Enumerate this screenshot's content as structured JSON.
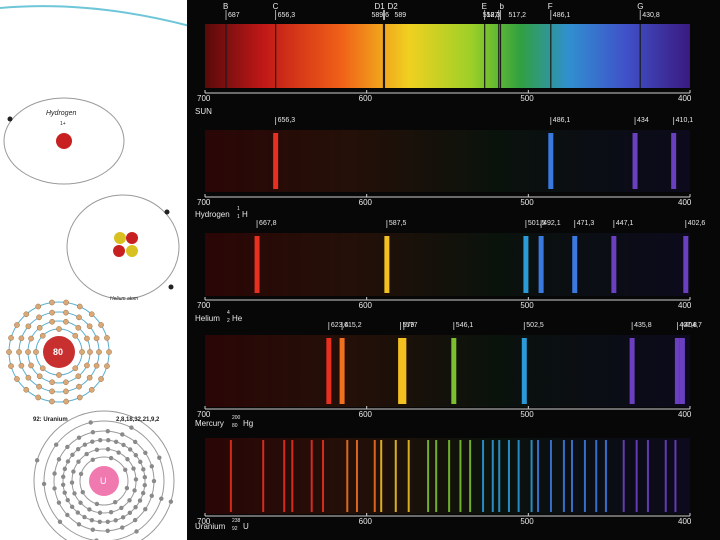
{
  "colors": {
    "background": "#070707",
    "red": "#e03020",
    "orange": "#f08020",
    "yellow": "#f2c020",
    "green": "#7cc030",
    "blue": "#3a8ae0",
    "violet": "#6a40c0"
  },
  "axis_ticks": [
    "700",
    "600",
    "500",
    "400"
  ],
  "atoms": {
    "hydrogen": {
      "title": "Hydrogen",
      "sub": "1+"
    },
    "helium": {
      "title": "Helium atom"
    },
    "mercury": {
      "nucleus": "80"
    },
    "uranium": {
      "title": "92: Uranium",
      "config": "2,8,18,32,21,9,2",
      "nucleus": "U"
    }
  },
  "chart_data": {
    "type": "spectra",
    "x_unit": "nm",
    "x_range": [
      700,
      400
    ],
    "spectra": [
      {
        "name": "SUN",
        "kind": "absorption",
        "lines": [
          {
            "key": "B",
            "nm": 687,
            "label": "687"
          },
          {
            "key": "C",
            "nm": 656.3,
            "label": "656,3"
          },
          {
            "key": "D1",
            "nm": 589.6,
            "label": "589,6"
          },
          {
            "key": "D2",
            "nm": 589,
            "label": "589"
          },
          {
            "key": "E",
            "nm": 527,
            "label": "527"
          },
          {
            "key": "",
            "nm": 518.3,
            "label": "518,3"
          },
          {
            "key": "b",
            "nm": 517.2,
            "label": "517,2"
          },
          {
            "key": "F",
            "nm": 486.1,
            "label": "486,1"
          },
          {
            "key": "G",
            "nm": 430.8,
            "label": "430,8"
          }
        ]
      },
      {
        "name": "Hydrogen",
        "isotope": {
          "mass": "1",
          "atomic": "1",
          "symbol": "H"
        },
        "kind": "emission",
        "lines": [
          {
            "nm": 656.3,
            "label": "656,3"
          },
          {
            "nm": 486.1,
            "label": "486,1"
          },
          {
            "nm": 434,
            "label": "434"
          },
          {
            "nm": 410.1,
            "label": "410,1"
          }
        ]
      },
      {
        "name": "Helium",
        "isotope": {
          "mass": "4",
          "atomic": "2",
          "symbol": "He"
        },
        "kind": "emission",
        "lines": [
          {
            "nm": 667.8,
            "label": "667,8"
          },
          {
            "nm": 587.5,
            "label": "587,5"
          },
          {
            "nm": 501.5,
            "label": "501,5"
          },
          {
            "nm": 492.1,
            "label": "492,1"
          },
          {
            "nm": 471.3,
            "label": "471,3"
          },
          {
            "nm": 447.1,
            "label": "447,1"
          },
          {
            "nm": 402.6,
            "label": "402,6"
          }
        ]
      },
      {
        "name": "Mercury",
        "isotope": {
          "mass": "200",
          "atomic": "80",
          "symbol": "Hg"
        },
        "kind": "emission",
        "lines": [
          {
            "nm": 623.4,
            "label": "623,4"
          },
          {
            "nm": 615.2,
            "label": "615,2"
          },
          {
            "nm": 579,
            "label": "579"
          },
          {
            "nm": 577,
            "label": "577"
          },
          {
            "nm": 546.1,
            "label": "546,1"
          },
          {
            "nm": 502.5,
            "label": "502,5"
          },
          {
            "nm": 435.8,
            "label": "435,8"
          },
          {
            "nm": 407.8,
            "label": "407,8"
          },
          {
            "nm": 404.7,
            "label": "404,7"
          }
        ]
      },
      {
        "name": "Uranium",
        "isotope": {
          "mass": "238",
          "atomic": "92",
          "symbol": "U"
        },
        "kind": "emission",
        "lines_nm": [
          684,
          664,
          651,
          646,
          634,
          627,
          612,
          606,
          595,
          591,
          582,
          574,
          562,
          557,
          549,
          542,
          536,
          528,
          522,
          518,
          512,
          506,
          498,
          494,
          486,
          478,
          473,
          465,
          458,
          452,
          441,
          433,
          426,
          415,
          409
        ]
      }
    ]
  }
}
